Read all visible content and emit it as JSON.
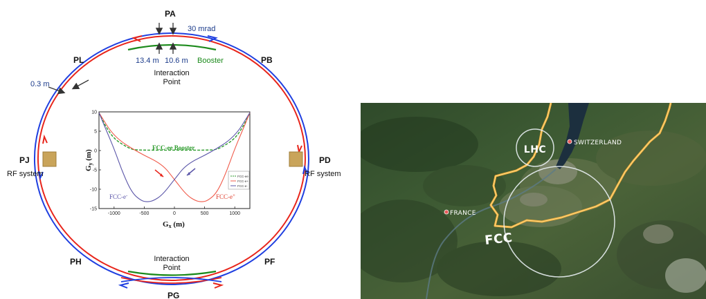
{
  "ring_diagram": {
    "points": {
      "pa": "PA",
      "pb": "PB",
      "pd": "PD",
      "pf": "PF",
      "pg": "PG",
      "ph": "PH",
      "pj": "PJ",
      "pl": "PL"
    },
    "labels": {
      "crossing_angle": "30 mrad",
      "offset_left": "13.4 m",
      "offset_right": "10.6 m",
      "booster": "Booster",
      "ip_top_line1": "Interaction",
      "ip_top_line2": "Point",
      "ip_bottom_line1": "Interaction",
      "ip_bottom_line2": "Point",
      "separation": "0.3 m",
      "rf_left": "RF system",
      "rf_right": "RF system"
    },
    "colors": {
      "electron_ring": "#1f3fe0",
      "positron_ring": "#e8251b",
      "booster": "#1b8a1b",
      "rf_block": "#c9a45a"
    }
  },
  "inset_chart": {
    "ylabel_main": "G",
    "ylabel_sub": "y",
    "ylabel_unit": " (m)",
    "xlabel_main": "G",
    "xlabel_sub": "x",
    "xlabel_unit": " (m)",
    "booster_label": "FCC-ee Booster",
    "eminus_label_main": "FCC-e",
    "eminus_label_sup": "-",
    "eplus_label_main": "FCC-e",
    "eplus_label_sup": "+",
    "legend": [
      "FCC-ee",
      "FCC-e+",
      "FCC-e-"
    ],
    "colors": {
      "booster": "#2a9a2a",
      "eplus": "#f05a4a",
      "eminus": "#5a55a8"
    },
    "chart_data": {
      "type": "line",
      "xlim": [
        -1250,
        1250
      ],
      "ylim": [
        -15,
        10
      ],
      "xticks": [
        -1000,
        -500,
        0,
        500,
        1000
      ],
      "yticks": [
        10,
        5,
        0,
        -5,
        -10,
        -15
      ],
      "series": [
        {
          "name": "FCC-ee",
          "x": [
            -1250,
            -1150,
            -1000,
            -800,
            -700,
            -600,
            0,
            600,
            700,
            800,
            1000,
            1150,
            1250
          ],
          "y": [
            9.8,
            6.5,
            3.0,
            1.0,
            0.3,
            0.1,
            0.1,
            0.1,
            0.3,
            1.0,
            3.0,
            6.5,
            9.8
          ]
        },
        {
          "name": "FCC-e+",
          "x": [
            -1250,
            -1000,
            -600,
            -200,
            0,
            200,
            350,
            450,
            550,
            700,
            850,
            1000,
            1150,
            1250
          ],
          "y": [
            9.8,
            3.5,
            -0.5,
            -3.5,
            -7.5,
            -11.5,
            -13.0,
            -13.3,
            -13.0,
            -11.0,
            -6.0,
            0.5,
            6.0,
            9.8
          ]
        },
        {
          "name": "FCC-e-",
          "x": [
            -1250,
            -1150,
            -1000,
            -850,
            -700,
            -550,
            -450,
            -350,
            -200,
            0,
            200,
            600,
            1000,
            1250
          ],
          "y": [
            9.8,
            6.0,
            0.5,
            -6.0,
            -11.0,
            -13.0,
            -13.3,
            -13.0,
            -11.5,
            -7.5,
            -3.5,
            -0.5,
            3.5,
            9.8
          ]
        }
      ]
    }
  },
  "map": {
    "lhc_label": "LHC",
    "fcc_label": "FCC",
    "switzerland_label": "SWITZERLAND",
    "france_label": "FRANCE",
    "colors": {
      "border": "#f4b13a",
      "ring": "#e8eef2"
    }
  }
}
